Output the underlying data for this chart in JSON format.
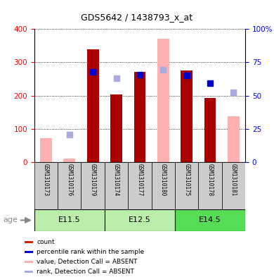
{
  "title": "GDS5642 / 1438793_x_at",
  "samples": [
    "GSM1310173",
    "GSM1310176",
    "GSM1310179",
    "GSM1310174",
    "GSM1310177",
    "GSM1310180",
    "GSM1310175",
    "GSM1310178",
    "GSM1310181"
  ],
  "age_groups": [
    {
      "label": "E11.5",
      "start": 0,
      "end": 3,
      "color": "#bbeeaa"
    },
    {
      "label": "E12.5",
      "start": 3,
      "end": 6,
      "color": "#bbeeaa"
    },
    {
      "label": "E14.5",
      "start": 6,
      "end": 9,
      "color": "#55dd55"
    }
  ],
  "count_values": [
    null,
    null,
    340,
    203,
    272,
    null,
    275,
    192,
    null
  ],
  "percentile_rank": [
    null,
    null,
    271,
    null,
    262,
    null,
    261,
    238,
    null
  ],
  "value_absent": [
    72,
    10,
    null,
    null,
    null,
    370,
    null,
    null,
    138
  ],
  "rank_absent": [
    null,
    82,
    null,
    253,
    null,
    278,
    null,
    null,
    210
  ],
  "left_ylim": [
    0,
    400
  ],
  "right_ylim": [
    0,
    100
  ],
  "left_yticks": [
    0,
    100,
    200,
    300,
    400
  ],
  "right_yticks": [
    0,
    25,
    50,
    75,
    100
  ],
  "right_yticklabels": [
    "0",
    "25",
    "50",
    "75",
    "100%"
  ],
  "bar_color_count": "#aa0000",
  "bar_color_absent": "#ffb0b0",
  "dot_color_rank": "#0000cc",
  "dot_color_rank_absent": "#aaaadd",
  "sample_bg_color": "#cccccc",
  "bar_width": 0.5,
  "dot_size": 40,
  "legend_items": [
    {
      "label": "count",
      "color": "#cc2200"
    },
    {
      "label": "percentile rank within the sample",
      "color": "#0000cc"
    },
    {
      "label": "value, Detection Call = ABSENT",
      "color": "#ffb0b0"
    },
    {
      "label": "rank, Detection Call = ABSENT",
      "color": "#aaaadd"
    }
  ]
}
